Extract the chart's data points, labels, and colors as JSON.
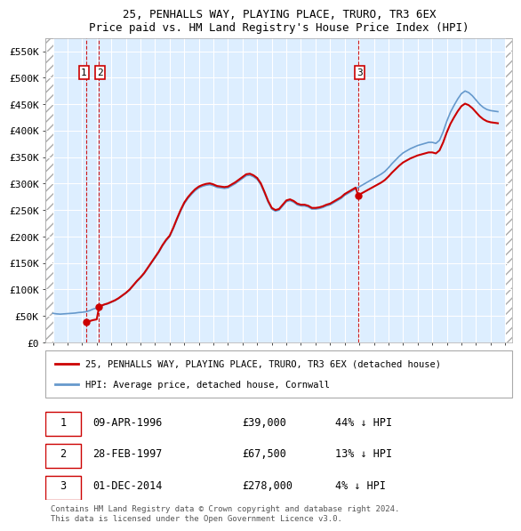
{
  "title": "25, PENHALLS WAY, PLAYING PLACE, TRURO, TR3 6EX",
  "subtitle": "Price paid vs. HM Land Registry's House Price Index (HPI)",
  "ylabel": "",
  "ylim": [
    0,
    575000
  ],
  "yticks": [
    0,
    50000,
    100000,
    150000,
    200000,
    250000,
    300000,
    350000,
    400000,
    450000,
    500000,
    550000
  ],
  "ytick_labels": [
    "£0",
    "£50K",
    "£100K",
    "£150K",
    "£200K",
    "£250K",
    "£300K",
    "£350K",
    "£400K",
    "£450K",
    "£500K",
    "£550K"
  ],
  "xlim_start": 1993.5,
  "xlim_end": 2025.5,
  "transactions": [
    {
      "date": 1996.27,
      "price": 39000,
      "label": "1"
    },
    {
      "date": 1997.16,
      "price": 67500,
      "label": "2"
    },
    {
      "date": 2014.92,
      "price": 278000,
      "label": "3"
    }
  ],
  "hpi_dates": [
    1994.0,
    1994.25,
    1994.5,
    1994.75,
    1995.0,
    1995.25,
    1995.5,
    1995.75,
    1996.0,
    1996.25,
    1996.5,
    1996.75,
    1997.0,
    1997.25,
    1997.5,
    1997.75,
    1998.0,
    1998.25,
    1998.5,
    1998.75,
    1999.0,
    1999.25,
    1999.5,
    1999.75,
    2000.0,
    2000.25,
    2000.5,
    2000.75,
    2001.0,
    2001.25,
    2001.5,
    2001.75,
    2002.0,
    2002.25,
    2002.5,
    2002.75,
    2003.0,
    2003.25,
    2003.5,
    2003.75,
    2004.0,
    2004.25,
    2004.5,
    2004.75,
    2005.0,
    2005.25,
    2005.5,
    2005.75,
    2006.0,
    2006.25,
    2006.5,
    2006.75,
    2007.0,
    2007.25,
    2007.5,
    2007.75,
    2008.0,
    2008.25,
    2008.5,
    2008.75,
    2009.0,
    2009.25,
    2009.5,
    2009.75,
    2010.0,
    2010.25,
    2010.5,
    2010.75,
    2011.0,
    2011.25,
    2011.5,
    2011.75,
    2012.0,
    2012.25,
    2012.5,
    2012.75,
    2013.0,
    2013.25,
    2013.5,
    2013.75,
    2014.0,
    2014.25,
    2014.5,
    2014.75,
    2015.0,
    2015.25,
    2015.5,
    2015.75,
    2016.0,
    2016.25,
    2016.5,
    2016.75,
    2017.0,
    2017.25,
    2017.5,
    2017.75,
    2018.0,
    2018.25,
    2018.5,
    2018.75,
    2019.0,
    2019.25,
    2019.5,
    2019.75,
    2020.0,
    2020.25,
    2020.5,
    2020.75,
    2021.0,
    2021.25,
    2021.5,
    2021.75,
    2022.0,
    2022.25,
    2022.5,
    2022.75,
    2023.0,
    2023.25,
    2023.5,
    2023.75,
    2024.0,
    2024.25,
    2024.5
  ],
  "hpi_values": [
    55000,
    54000,
    53500,
    54000,
    54500,
    55000,
    55500,
    56500,
    57000,
    58000,
    60000,
    63000,
    65000,
    68000,
    71000,
    73000,
    76000,
    79000,
    83000,
    88000,
    93000,
    99000,
    107000,
    115000,
    122000,
    130000,
    140000,
    150000,
    160000,
    170000,
    182000,
    192000,
    200000,
    215000,
    232000,
    248000,
    262000,
    272000,
    280000,
    287000,
    292000,
    295000,
    297000,
    298000,
    296000,
    293000,
    292000,
    291000,
    292000,
    296000,
    300000,
    305000,
    310000,
    315000,
    316000,
    313000,
    308000,
    298000,
    282000,
    265000,
    252000,
    248000,
    250000,
    258000,
    266000,
    268000,
    265000,
    260000,
    258000,
    258000,
    256000,
    252000,
    252000,
    253000,
    255000,
    258000,
    260000,
    264000,
    268000,
    272000,
    278000,
    282000,
    286000,
    290000,
    294000,
    298000,
    302000,
    306000,
    310000,
    314000,
    318000,
    323000,
    330000,
    338000,
    345000,
    352000,
    358000,
    362000,
    366000,
    369000,
    372000,
    374000,
    376000,
    378000,
    378000,
    376000,
    382000,
    398000,
    418000,
    435000,
    448000,
    460000,
    470000,
    475000,
    472000,
    466000,
    458000,
    450000,
    444000,
    440000,
    438000,
    437000,
    436000
  ],
  "sale_line_color": "#cc0000",
  "hpi_line_color": "#6699cc",
  "marker_color": "#cc0000",
  "vline_color": "#cc0000",
  "transaction_table": [
    {
      "num": "1",
      "date": "09-APR-1996",
      "price": "£39,000",
      "note": "44% ↓ HPI"
    },
    {
      "num": "2",
      "date": "28-FEB-1997",
      "price": "£67,500",
      "note": "13% ↓ HPI"
    },
    {
      "num": "3",
      "date": "01-DEC-2014",
      "price": "£278,000",
      "note": "4% ↓ HPI"
    }
  ],
  "legend_label_red": "25, PENHALLS WAY, PLAYING PLACE, TRURO, TR3 6EX (detached house)",
  "legend_label_blue": "HPI: Average price, detached house, Cornwall",
  "footer": "Contains HM Land Registry data © Crown copyright and database right 2024.\nThis data is licensed under the Open Government Licence v3.0.",
  "bg_hatch_color": "#cccccc",
  "plot_bg_color": "#ddeeff",
  "grid_color": "#ffffff"
}
